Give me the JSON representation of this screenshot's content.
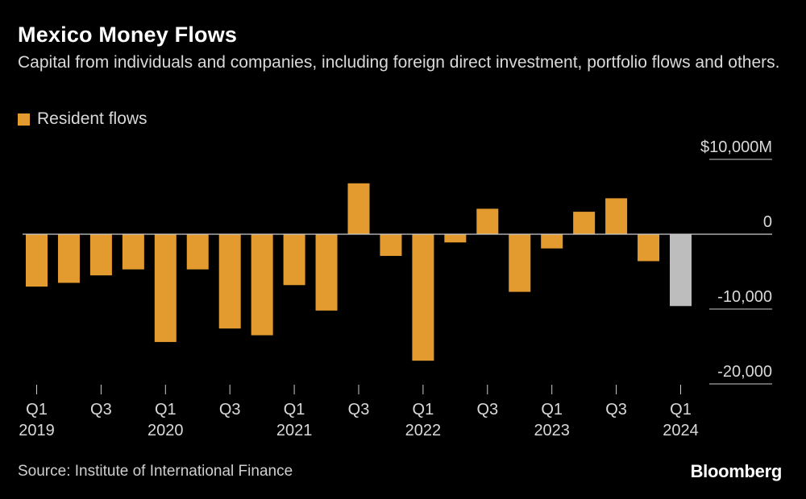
{
  "header": {
    "title": "Mexico Money Flows",
    "subtitle": "Capital from individuals and companies, including foreign direct investment, portfolio flows and others."
  },
  "legend": {
    "label": "Resident flows",
    "color": "#e39b2f"
  },
  "chart_data": {
    "type": "bar",
    "title": "Mexico Money Flows",
    "subtitle": "Capital from individuals and companies, including foreign direct investment, portfolio flows and others.",
    "xlabel": "",
    "ylabel": "",
    "ylim": [
      -20000,
      10000
    ],
    "y_ticks": [
      {
        "value": 10000,
        "label": "$10,000M"
      },
      {
        "value": 0,
        "label": "0"
      },
      {
        "value": -10000,
        "label": "-10,000"
      },
      {
        "value": -20000,
        "label": "-20,000"
      }
    ],
    "categories": [
      "Q1 2019",
      "Q2 2019",
      "Q3 2019",
      "Q4 2019",
      "Q1 2020",
      "Q2 2020",
      "Q3 2020",
      "Q4 2020",
      "Q1 2021",
      "Q2 2021",
      "Q3 2021",
      "Q4 2021",
      "Q1 2022",
      "Q2 2022",
      "Q3 2022",
      "Q4 2022",
      "Q1 2023",
      "Q2 2023",
      "Q3 2023",
      "Q4 2023",
      "Q1 2024"
    ],
    "x_tick_labels": [
      {
        "index": 0,
        "quarter": "Q1",
        "year": "2019"
      },
      {
        "index": 2,
        "quarter": "Q3",
        "year": ""
      },
      {
        "index": 4,
        "quarter": "Q1",
        "year": "2020"
      },
      {
        "index": 6,
        "quarter": "Q3",
        "year": ""
      },
      {
        "index": 8,
        "quarter": "Q1",
        "year": "2021"
      },
      {
        "index": 10,
        "quarter": "Q3",
        "year": ""
      },
      {
        "index": 12,
        "quarter": "Q1",
        "year": "2022"
      },
      {
        "index": 14,
        "quarter": "Q3",
        "year": ""
      },
      {
        "index": 16,
        "quarter": "Q1",
        "year": "2023"
      },
      {
        "index": 18,
        "quarter": "Q3",
        "year": ""
      },
      {
        "index": 20,
        "quarter": "Q1",
        "year": "2024"
      }
    ],
    "series": [
      {
        "name": "Resident flows",
        "color": "#e39b2f",
        "highlight_color": "#bdbdbd",
        "highlight_index": 20,
        "values": [
          -7000,
          -6500,
          -5500,
          -4700,
          -14400,
          -4700,
          -12600,
          -13500,
          -6800,
          -10200,
          6800,
          -2900,
          -16900,
          -1100,
          3400,
          -7700,
          -1900,
          3000,
          4800,
          -3600,
          -9600
        ]
      }
    ]
  },
  "footer": {
    "source": "Source: Institute of International Finance",
    "logo": "Bloomberg"
  }
}
